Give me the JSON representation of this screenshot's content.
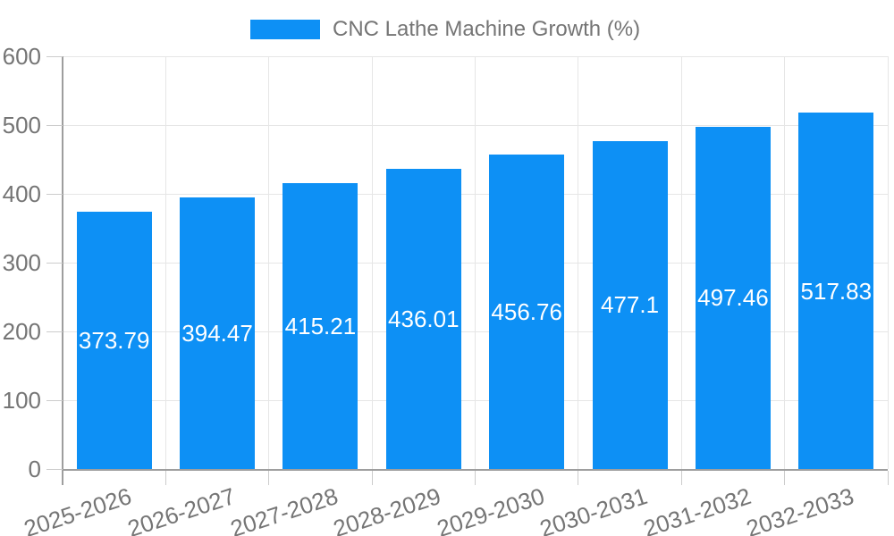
{
  "chart_data": {
    "type": "bar",
    "series_name": "CNC Lathe Machine Growth (%)",
    "title": "CNC Lathe Machine Growth (%)",
    "xlabel": "",
    "ylabel": "",
    "categories": [
      "2025-2026",
      "2026-2027",
      "2027-2028",
      "2028-2029",
      "2029-2030",
      "2030-2031",
      "2031-2032",
      "2032-2033"
    ],
    "values": [
      373.79,
      394.47,
      415.21,
      436.01,
      456.76,
      477.1,
      497.46,
      517.83
    ],
    "bar_labels": [
      "373.79",
      "394.47",
      "415.21",
      "436.01",
      "456.76",
      "477.1",
      "497.46",
      "517.83"
    ],
    "y_ticks": [
      0,
      100,
      200,
      300,
      400,
      500,
      600
    ],
    "ylim": [
      0,
      600
    ],
    "legend_position": "top",
    "grid": true,
    "colors": {
      "bar": "#0d90f5",
      "bar_label": "#ffffff",
      "axis_text": "#757575",
      "grid": "#e6e6e6",
      "tick": "#cccccc",
      "axis_line": "#9e9e9e",
      "background": "#ffffff"
    }
  }
}
